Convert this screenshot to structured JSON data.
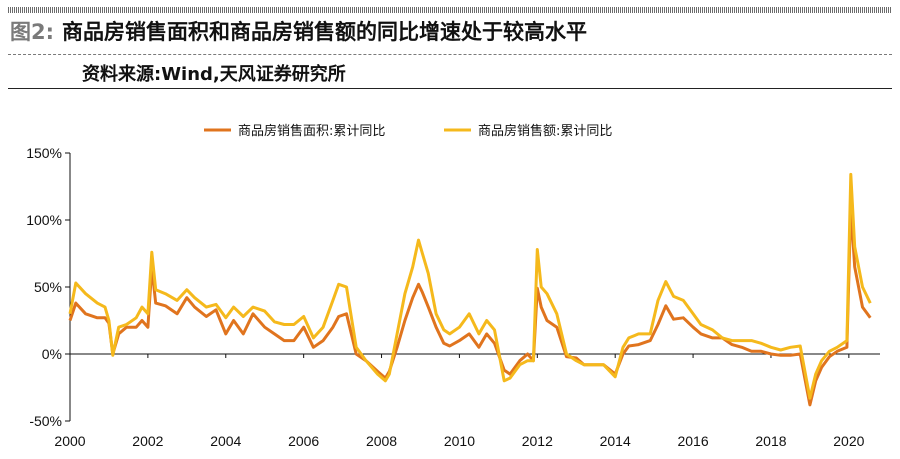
{
  "header": {
    "figure_number": "图2:",
    "title": "商品房销售面积和商品房销售额的同比增速处于较高水平",
    "source": "资料来源:Wind,天风证券研究所"
  },
  "chart_data": {
    "type": "line",
    "title": "",
    "xlabel": "",
    "ylabel": "",
    "xlim": [
      2000,
      2020.8
    ],
    "ylim": [
      -50,
      150
    ],
    "x_ticks": [
      "2000",
      "2002",
      "2004",
      "2006",
      "2008",
      "2010",
      "2012",
      "2014",
      "2016",
      "2018",
      "2020"
    ],
    "y_ticks": [
      "150%",
      "100%",
      "50%",
      "0%",
      "-50%"
    ],
    "y_tick_values": [
      150,
      100,
      50,
      0,
      -50
    ],
    "grid": false,
    "legend_position": "top-center",
    "series": [
      {
        "name": "商品房销售面积:累计同比",
        "color": "#E0741E",
        "x": [
          2000.0,
          2000.15,
          2000.4,
          2000.7,
          2000.9,
          2001.0,
          2001.1,
          2001.25,
          2001.45,
          2001.7,
          2001.85,
          2002.0,
          2002.1,
          2002.2,
          2002.45,
          2002.75,
          2003.0,
          2003.2,
          2003.5,
          2003.75,
          2004.0,
          2004.2,
          2004.45,
          2004.7,
          2005.0,
          2005.25,
          2005.5,
          2005.75,
          2006.0,
          2006.25,
          2006.5,
          2006.75,
          2006.9,
          2007.1,
          2007.35,
          2007.6,
          2007.9,
          2008.1,
          2008.2,
          2008.4,
          2008.6,
          2008.8,
          2008.95,
          2009.05,
          2009.2,
          2009.4,
          2009.6,
          2009.75,
          2010.0,
          2010.25,
          2010.5,
          2010.7,
          2010.9,
          2011.15,
          2011.3,
          2011.55,
          2011.75,
          2011.9,
          2012.0,
          2012.1,
          2012.25,
          2012.5,
          2012.75,
          2013.0,
          2013.2,
          2013.45,
          2013.7,
          2014.0,
          2014.2,
          2014.35,
          2014.6,
          2014.9,
          2015.1,
          2015.3,
          2015.5,
          2015.75,
          2016.0,
          2016.2,
          2016.5,
          2016.75,
          2017.0,
          2017.25,
          2017.5,
          2017.75,
          2018.0,
          2018.25,
          2018.5,
          2018.75,
          2019.0,
          2019.15,
          2019.3,
          2019.5,
          2019.7,
          2019.95,
          2020.05,
          2020.15,
          2020.35,
          2020.55
        ],
        "values": [
          25,
          38,
          30,
          27,
          27,
          23,
          0,
          15,
          20,
          20,
          25,
          20,
          65,
          38,
          36,
          30,
          42,
          35,
          28,
          33,
          15,
          25,
          15,
          30,
          20,
          15,
          10,
          10,
          20,
          5,
          10,
          20,
          28,
          30,
          0,
          -5,
          -13,
          -18,
          -13,
          5,
          25,
          42,
          52,
          46,
          35,
          20,
          8,
          6,
          10,
          15,
          5,
          15,
          8,
          -12,
          -15,
          -5,
          0,
          -5,
          49,
          35,
          25,
          20,
          -2,
          -3,
          -8,
          -8,
          -8,
          -15,
          0,
          6,
          7,
          10,
          22,
          36,
          26,
          27,
          20,
          15,
          12,
          12,
          7,
          5,
          2,
          2,
          0,
          -1,
          -1,
          0,
          -38,
          -20,
          -10,
          -2,
          2,
          5,
          110,
          65,
          35,
          27
        ]
      },
      {
        "name": "商品房销售额:累计同比",
        "color": "#F5B91C",
        "x": [
          2000.0,
          2000.15,
          2000.4,
          2000.7,
          2000.9,
          2001.0,
          2001.1,
          2001.25,
          2001.45,
          2001.7,
          2001.85,
          2002.0,
          2002.1,
          2002.2,
          2002.45,
          2002.75,
          2003.0,
          2003.2,
          2003.5,
          2003.75,
          2004.0,
          2004.2,
          2004.45,
          2004.7,
          2005.0,
          2005.25,
          2005.5,
          2005.75,
          2006.0,
          2006.25,
          2006.5,
          2006.75,
          2006.9,
          2007.1,
          2007.35,
          2007.6,
          2007.9,
          2008.1,
          2008.2,
          2008.4,
          2008.6,
          2008.8,
          2008.95,
          2009.05,
          2009.2,
          2009.4,
          2009.6,
          2009.75,
          2010.0,
          2010.25,
          2010.5,
          2010.7,
          2010.9,
          2011.15,
          2011.3,
          2011.55,
          2011.75,
          2011.9,
          2012.0,
          2012.1,
          2012.25,
          2012.5,
          2012.75,
          2013.0,
          2013.2,
          2013.45,
          2013.7,
          2014.0,
          2014.2,
          2014.35,
          2014.6,
          2014.9,
          2015.1,
          2015.3,
          2015.5,
          2015.75,
          2016.0,
          2016.2,
          2016.5,
          2016.75,
          2017.0,
          2017.25,
          2017.5,
          2017.75,
          2018.0,
          2018.25,
          2018.5,
          2018.75,
          2019.0,
          2019.15,
          2019.3,
          2019.5,
          2019.7,
          2019.95,
          2020.05,
          2020.15,
          2020.35,
          2020.55
        ],
        "values": [
          30,
          53,
          45,
          38,
          35,
          25,
          -1,
          20,
          22,
          27,
          35,
          30,
          76,
          48,
          45,
          40,
          48,
          42,
          35,
          37,
          27,
          35,
          28,
          35,
          32,
          24,
          22,
          22,
          28,
          12,
          20,
          40,
          52,
          50,
          5,
          -5,
          -15,
          -20,
          -15,
          15,
          45,
          65,
          85,
          75,
          60,
          30,
          18,
          15,
          20,
          30,
          15,
          25,
          18,
          -20,
          -18,
          -8,
          -5,
          -5,
          78,
          50,
          45,
          30,
          0,
          -5,
          -8,
          -8,
          -8,
          -17,
          5,
          12,
          15,
          15,
          40,
          54,
          43,
          40,
          30,
          22,
          18,
          12,
          10,
          10,
          10,
          8,
          5,
          3,
          5,
          6,
          -33,
          -15,
          -5,
          2,
          5,
          10,
          134,
          80,
          50,
          38
        ]
      }
    ]
  }
}
